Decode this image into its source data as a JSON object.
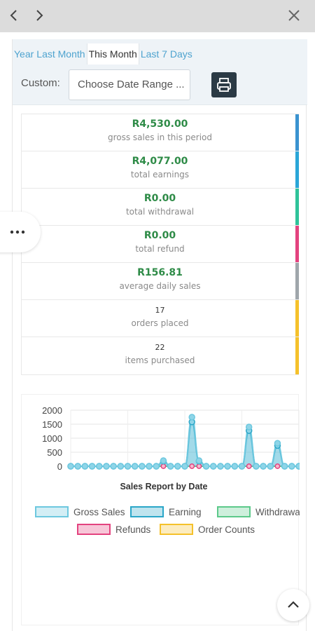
{
  "window": {
    "back_icon": "chevron-left-icon",
    "forward_icon": "chevron-right-icon",
    "close_icon": "close-icon"
  },
  "filters": {
    "tabs": [
      {
        "label": "Year",
        "active": false
      },
      {
        "label": "Last Month",
        "active": false
      },
      {
        "label": "This Month",
        "active": true
      },
      {
        "label": "Last 7 Days",
        "active": false
      }
    ],
    "custom_label": "Custom:",
    "date_placeholder": "Choose Date Range ...",
    "print_icon": "print-icon"
  },
  "stats": [
    {
      "value": "R4,530.00",
      "label": "gross sales in this period",
      "color": "#3a93d0"
    },
    {
      "value": "R4,077.00",
      "label": "total earnings",
      "color": "#2aa6d8"
    },
    {
      "value": "R0.00",
      "label": "total withdrawal",
      "color": "#2fc39a"
    },
    {
      "value": "R0.00",
      "label": "total refund",
      "color": "#e3437f"
    },
    {
      "value": "R156.81",
      "label": "average daily sales",
      "color": "#a0a6ab"
    },
    {
      "value": "17",
      "label": "orders placed",
      "color": "#f5c12b"
    },
    {
      "value": "22",
      "label": "items purchased",
      "color": "#f5c12b"
    }
  ],
  "chart_data": {
    "type": "line",
    "title": "Sales Report by Date",
    "xlabel": "",
    "ylabel": "",
    "ylim": [
      0,
      2000
    ],
    "yticks": [
      0,
      500,
      1000,
      1500,
      2000
    ],
    "grid": true,
    "legend_position": "bottom",
    "series": [
      {
        "name": "Gross Sales",
        "color": "#6dc8df",
        "values": [
          0,
          0,
          0,
          0,
          0,
          0,
          0,
          0,
          0,
          0,
          0,
          0,
          0,
          200,
          0,
          0,
          0,
          1750,
          200,
          0,
          0,
          0,
          0,
          0,
          0,
          1400,
          0,
          0,
          0,
          820,
          0,
          0,
          0
        ]
      },
      {
        "name": "Earning",
        "color": "#2aa6c8",
        "values": [
          0,
          0,
          0,
          0,
          0,
          0,
          0,
          0,
          0,
          0,
          0,
          0,
          0,
          180,
          0,
          0,
          0,
          1580,
          180,
          0,
          0,
          0,
          0,
          0,
          0,
          1270,
          0,
          0,
          0,
          740,
          0,
          0,
          0
        ]
      },
      {
        "name": "Withdrawal",
        "color": "#5cc98a",
        "values": [
          0,
          0,
          0,
          0,
          0,
          0,
          0,
          0,
          0,
          0,
          0,
          0,
          0,
          0,
          0,
          0,
          0,
          0,
          0,
          0,
          0,
          0,
          0,
          0,
          0,
          0,
          0,
          0,
          0,
          0,
          0,
          0,
          0
        ]
      },
      {
        "name": "Refunds",
        "color": "#e3437f",
        "values": [
          0,
          0,
          0,
          0,
          0,
          0,
          0,
          0,
          0,
          0,
          0,
          0,
          0,
          0,
          0,
          0,
          0,
          0,
          0,
          0,
          0,
          0,
          0,
          0,
          0,
          0,
          0,
          0,
          0,
          0,
          0,
          0,
          0
        ]
      },
      {
        "name": "Order Counts",
        "color": "#f5c12b",
        "values": [
          0,
          0,
          0,
          0,
          0,
          0,
          0,
          0,
          0,
          0,
          0,
          0,
          0,
          0,
          0,
          0,
          0,
          0,
          0,
          0,
          0,
          0,
          0,
          0,
          0,
          0,
          0,
          0,
          0,
          0,
          0,
          0,
          0
        ]
      }
    ]
  },
  "floating": {
    "menu_icon": "more-dots-icon",
    "scroll_top_icon": "chevron-up-icon"
  }
}
